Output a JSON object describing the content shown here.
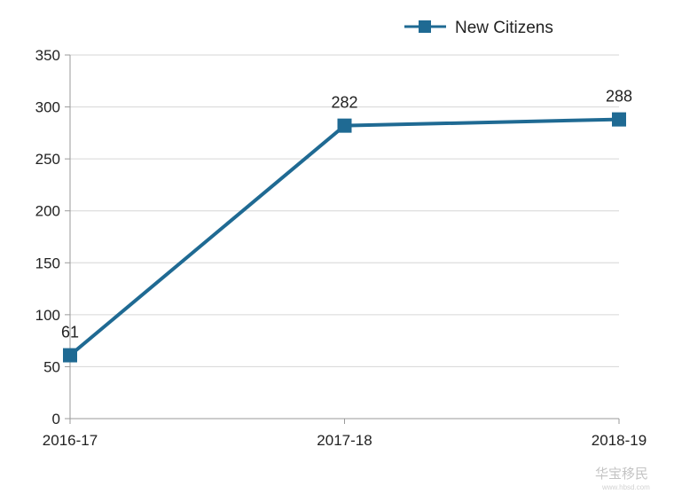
{
  "chart_data": {
    "type": "line",
    "categories": [
      "2016-17",
      "2017-18",
      "2018-19"
    ],
    "series": [
      {
        "name": "New Citizens",
        "values": [
          61,
          282,
          288
        ],
        "color": "#1f6a93"
      }
    ],
    "data_labels": [
      "61",
      "282",
      "288"
    ],
    "ylim": [
      0,
      350
    ],
    "yticks": [
      0,
      50,
      100,
      150,
      200,
      250,
      300,
      350
    ],
    "grid": true,
    "legend_position": "top-right",
    "marker": "square"
  },
  "watermark": {
    "text": "华宝移民",
    "subtext": "www.hbsd.com"
  }
}
